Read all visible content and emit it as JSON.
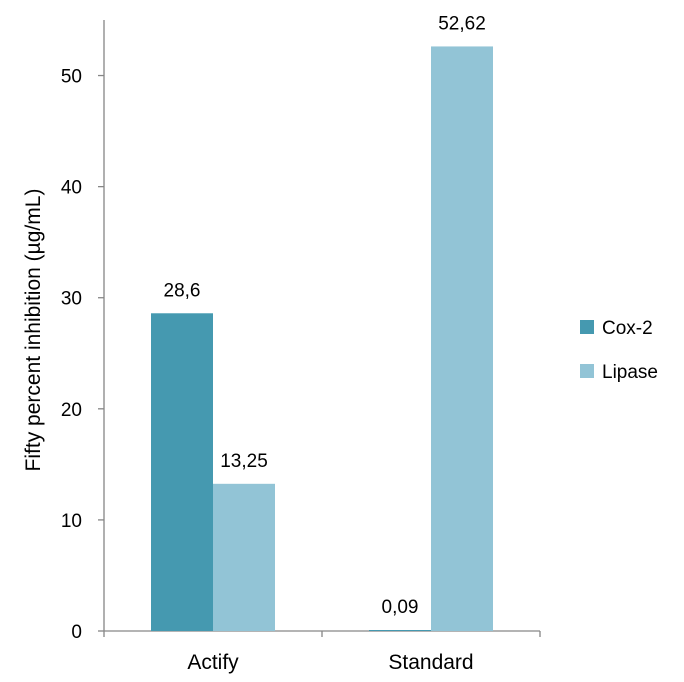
{
  "chart_data": {
    "type": "bar",
    "title": "",
    "xlabel": "",
    "ylabel": "Fifty percent inhibition (µg/mL)",
    "categories": [
      "Actify",
      "Standard"
    ],
    "series": [
      {
        "name": "Cox-2",
        "values": [
          28.6,
          0.09
        ],
        "labels": [
          "28,6",
          "0,09"
        ],
        "color": "#4599b0"
      },
      {
        "name": "Lipase",
        "values": [
          13.25,
          52.62
        ],
        "labels": [
          "13,25",
          "52,62"
        ],
        "color": "#92c4d6"
      }
    ],
    "ylim": [
      0,
      55
    ],
    "yticks": [
      0,
      10,
      20,
      30,
      40,
      50
    ],
    "grid": false,
    "legend_position": "right"
  }
}
